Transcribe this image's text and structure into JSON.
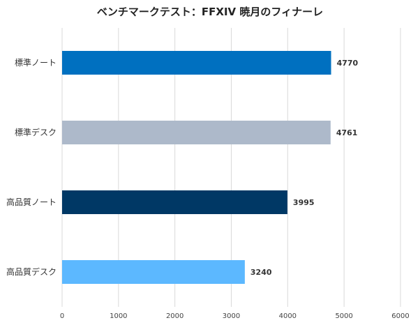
{
  "chart_data": {
    "type": "bar",
    "orientation": "horizontal",
    "title": "ベンチマークテスト：FFXIV 暁月のフィナーレ",
    "categories": [
      "標準ノート",
      "標準デスク",
      "高品質ノート",
      "高品質デスク"
    ],
    "values": [
      4770,
      4761,
      3995,
      3240
    ],
    "bar_colors": [
      "#0070c0",
      "#adb9ca",
      "#003865",
      "#5cb8ff"
    ],
    "xlim": [
      0,
      6000
    ],
    "xticks": [
      0,
      1000,
      2000,
      3000,
      4000,
      5000,
      6000
    ],
    "grid": true,
    "legend": "none"
  }
}
